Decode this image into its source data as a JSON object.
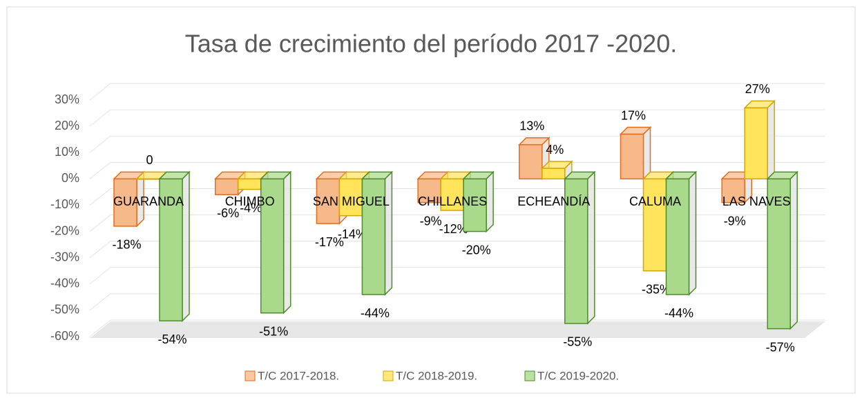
{
  "chart_data": {
    "type": "bar3d",
    "title": "Tasa de crecimiento del período 2017 -2020.",
    "categories": [
      "GUARANDA",
      "CHIMBO",
      "SAN MIGUEL",
      "CHILLANES",
      "ECHEANDÍA",
      "CALUMA",
      "LAS NAVES"
    ],
    "series": [
      {
        "name": "T/C 2017-2018.",
        "color": "#f8b98a",
        "stroke": "#e46c1c",
        "values": [
          -18,
          -6,
          -17,
          -9,
          13,
          17,
          -9
        ],
        "value_labels": [
          "-18%",
          "-6%",
          "-17%",
          "-9%",
          "13%",
          "17%",
          "-9%"
        ]
      },
      {
        "name": "T/C 2018-2019.",
        "color": "#ffe45c",
        "stroke": "#d4a500",
        "values": [
          0,
          -4,
          -14,
          -12,
          4,
          -35,
          27
        ],
        "value_labels": [
          "0",
          "-4%",
          "-14%",
          "-12%",
          "4%",
          "-35%",
          "27%"
        ]
      },
      {
        "name": "T/C 2019-2020.",
        "color": "#a9d98a",
        "stroke": "#4e8c2a",
        "values": [
          -54,
          -51,
          -44,
          -20,
          -55,
          -44,
          -57
        ],
        "value_labels": [
          "-54%",
          "-51%",
          "-44%",
          "-20%",
          "-55%",
          "-44%",
          "-57%"
        ]
      }
    ],
    "ylim": [
      -60,
      30
    ],
    "yticks": [
      {
        "value": -60,
        "label": "-60%"
      },
      {
        "value": -50,
        "label": "-50%"
      },
      {
        "value": -40,
        "label": "-40%"
      },
      {
        "value": -30,
        "label": "-30%"
      },
      {
        "value": -20,
        "label": "-20%"
      },
      {
        "value": -10,
        "label": "-10%"
      },
      {
        "value": 0,
        "label": "0%"
      },
      {
        "value": 10,
        "label": "10%"
      },
      {
        "value": 20,
        "label": "20%"
      },
      {
        "value": 30,
        "label": "30%"
      }
    ],
    "grid": true,
    "legend": "bottom"
  }
}
